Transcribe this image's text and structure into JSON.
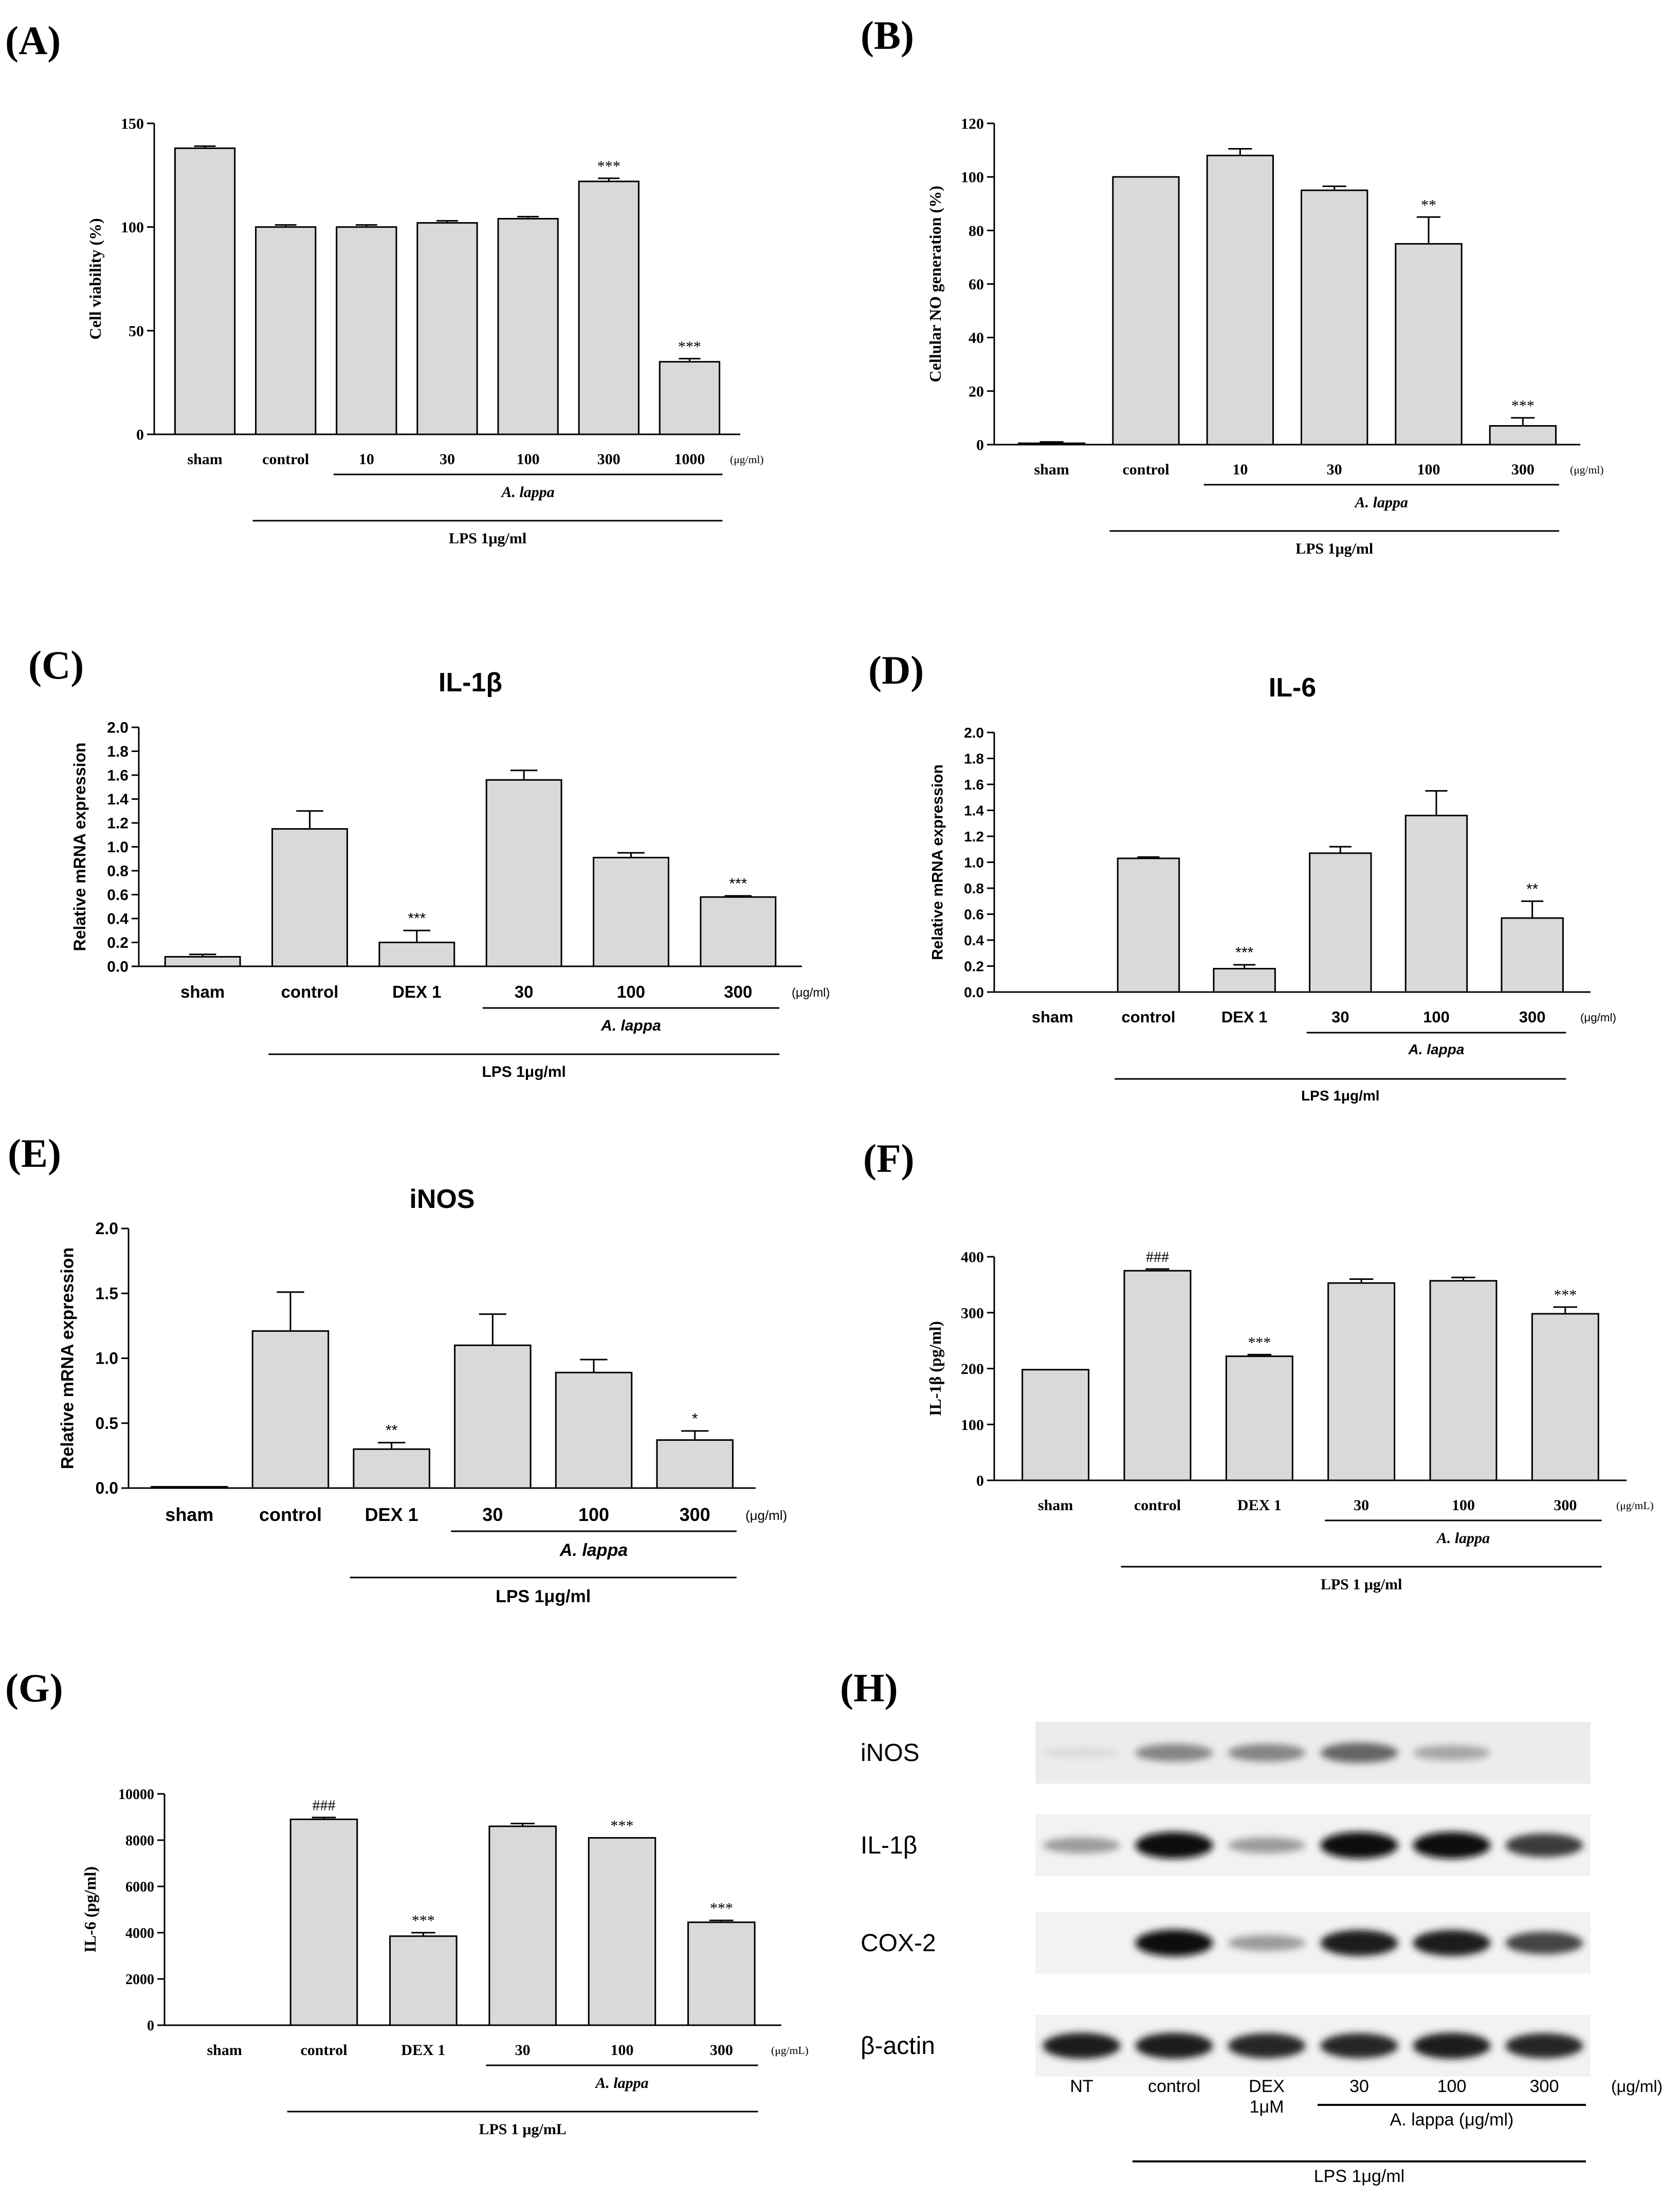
{
  "chart_data": [
    {
      "id": "A",
      "type": "bar",
      "panel_label": "(A)",
      "font": "serif",
      "title": "",
      "ylabel": "Cell viability  (%)",
      "ylim": [
        0,
        150
      ],
      "yticks": [
        0,
        50,
        100,
        150
      ],
      "ytick_labels": [
        "0",
        "50",
        "100",
        "150"
      ],
      "categories": [
        "sham",
        "control",
        "10",
        "30",
        "100",
        "300",
        "1000"
      ],
      "values": [
        138,
        100,
        100,
        102,
        104,
        122,
        35
      ],
      "errors": [
        1,
        1,
        1,
        1,
        1,
        1.5,
        1.5
      ],
      "significance": [
        "",
        "",
        "",
        "",
        "",
        "***",
        "***"
      ],
      "unit_label": "(μg/ml)",
      "groups": [
        {
          "label": "A. lappa",
          "italic": true,
          "from": 2,
          "to": 6,
          "level": 1
        },
        {
          "label": "LPS 1μg/ml",
          "italic": false,
          "from": 1,
          "to": 6,
          "level": 2
        }
      ]
    },
    {
      "id": "B",
      "type": "bar",
      "panel_label": "(B)",
      "font": "serif",
      "title": "",
      "ylabel": "Cellular NO generation (%)",
      "ylim": [
        0,
        120
      ],
      "yticks": [
        0,
        20,
        40,
        60,
        80,
        100,
        120
      ],
      "ytick_labels": [
        "0",
        "20",
        "40",
        "60",
        "80",
        "100",
        "120"
      ],
      "categories": [
        "sham",
        "control",
        "10",
        "30",
        "100",
        "300"
      ],
      "values": [
        0.5,
        100,
        108,
        95,
        75,
        7
      ],
      "errors": [
        0.5,
        0,
        2.5,
        1.5,
        10,
        3
      ],
      "significance": [
        "",
        "",
        "",
        "",
        "**",
        "***"
      ],
      "unit_label": "(μg/ml)",
      "groups": [
        {
          "label": "A. lappa",
          "italic": true,
          "from": 2,
          "to": 5,
          "level": 1
        },
        {
          "label": "LPS 1μg/ml",
          "italic": false,
          "from": 1,
          "to": 5,
          "level": 2
        }
      ]
    },
    {
      "id": "C",
      "type": "bar",
      "panel_label": "(C)",
      "font": "sans",
      "title": "IL-1β",
      "ylabel": "Relative mRNA expression",
      "ylim": [
        0,
        2.0
      ],
      "yticks": [
        0,
        0.2,
        0.4,
        0.6,
        0.8,
        1.0,
        1.2,
        1.4,
        1.6,
        1.8,
        2.0
      ],
      "ytick_labels": [
        "0.0",
        "0.2",
        "0.4",
        "0.6",
        "0.8",
        "1.0",
        "1.2",
        "1.4",
        "1.6",
        "1.8",
        "2.0"
      ],
      "categories": [
        "sham",
        "control",
        "DEX 1",
        "30",
        "100",
        "300"
      ],
      "values": [
        0.08,
        1.15,
        0.2,
        1.56,
        0.91,
        0.58
      ],
      "errors": [
        0.02,
        0.15,
        0.1,
        0.08,
        0.04,
        0.01
      ],
      "significance": [
        "",
        "",
        "***",
        "",
        "",
        "***"
      ],
      "unit_label": "(μg/ml)",
      "groups": [
        {
          "label": "A. lappa",
          "italic": true,
          "from": 3,
          "to": 5,
          "level": 1
        },
        {
          "label": "LPS 1μg/ml",
          "italic": false,
          "from": 1,
          "to": 5,
          "level": 2
        }
      ]
    },
    {
      "id": "D",
      "type": "bar",
      "panel_label": "(D)",
      "font": "sans",
      "title": "IL-6",
      "ylabel": "Relative mRNA expression",
      "ylim": [
        0,
        2.0
      ],
      "yticks": [
        0,
        0.2,
        0.4,
        0.6,
        0.8,
        1.0,
        1.2,
        1.4,
        1.6,
        1.8,
        2.0
      ],
      "ytick_labels": [
        "0.0",
        "0.2",
        "0.4",
        "0.6",
        "0.8",
        "1.0",
        "1.2",
        "1.4",
        "1.6",
        "1.8",
        "2.0"
      ],
      "categories": [
        "sham",
        "control",
        "DEX 1",
        "30",
        "100",
        "300"
      ],
      "values": [
        0,
        1.03,
        0.18,
        1.07,
        1.36,
        0.57
      ],
      "errors": [
        0,
        0.01,
        0.03,
        0.05,
        0.19,
        0.13
      ],
      "significance": [
        "",
        "",
        "***",
        "",
        "",
        "**"
      ],
      "unit_label": "(μg/ml)",
      "groups": [
        {
          "label": "A. lappa",
          "italic": true,
          "from": 3,
          "to": 5,
          "level": 1
        },
        {
          "label": "LPS 1μg/ml",
          "italic": false,
          "from": 1,
          "to": 5,
          "level": 2
        }
      ]
    },
    {
      "id": "E",
      "type": "bar",
      "panel_label": "(E)",
      "font": "sans",
      "title": "iNOS",
      "ylabel": "Relative mRNA expression",
      "ylim": [
        0,
        2.0
      ],
      "yticks": [
        0,
        0.5,
        1.0,
        1.5,
        2.0
      ],
      "ytick_labels": [
        "0.0",
        "0.5",
        "1.0",
        "1.5",
        "2.0"
      ],
      "categories": [
        "sham",
        "control",
        "DEX 1",
        "30",
        "100",
        "300"
      ],
      "values": [
        0.01,
        1.21,
        0.3,
        1.1,
        0.89,
        0.37
      ],
      "errors": [
        0,
        0.3,
        0.05,
        0.24,
        0.1,
        0.07
      ],
      "significance": [
        "",
        "",
        "**",
        "",
        "",
        "*"
      ],
      "unit_label": "(μg/ml)",
      "groups": [
        {
          "label": "A. lappa",
          "italic": true,
          "from": 3,
          "to": 5,
          "level": 1
        },
        {
          "label": "LPS 1μg/ml",
          "italic": false,
          "from": 2,
          "to": 5,
          "level": 2
        }
      ]
    },
    {
      "id": "F",
      "type": "bar",
      "panel_label": "(F)",
      "font": "serif",
      "title": "",
      "ylabel": "IL-1β (pg/ml)",
      "ylim": [
        0,
        400
      ],
      "yticks": [
        0,
        100,
        200,
        300,
        400
      ],
      "ytick_labels": [
        "0",
        "100",
        "200",
        "300",
        "400"
      ],
      "categories": [
        "sham",
        "control",
        "DEX 1",
        "30",
        "100",
        "300"
      ],
      "values": [
        198,
        375,
        222,
        353,
        357,
        298
      ],
      "errors": [
        0,
        3,
        3,
        7,
        6,
        12
      ],
      "significance": [
        "",
        "###",
        "***",
        "",
        "",
        "***"
      ],
      "unit_label": "(μg/mL)",
      "groups": [
        {
          "label": "A. lappa",
          "italic": true,
          "from": 3,
          "to": 5,
          "level": 1
        },
        {
          "label": "LPS 1 μg/ml",
          "italic": false,
          "from": 1,
          "to": 5,
          "level": 2
        }
      ]
    },
    {
      "id": "G",
      "type": "bar",
      "panel_label": "(G)",
      "font": "serif",
      "title": "",
      "ylabel": "IL-6 (pg/ml)",
      "ylim": [
        0,
        10000
      ],
      "yticks": [
        0,
        2000,
        4000,
        6000,
        8000,
        10000
      ],
      "ytick_labels": [
        "0",
        "2000",
        "4000",
        "6000",
        "8000",
        "10000"
      ],
      "categories": [
        "sham",
        "control",
        "DEX 1",
        "30",
        "100",
        "300"
      ],
      "values": [
        0,
        8900,
        3850,
        8600,
        8100,
        4450
      ],
      "errors": [
        0,
        80,
        150,
        120,
        0,
        80
      ],
      "significance": [
        "",
        "###",
        "***",
        "",
        "***",
        "***"
      ],
      "unit_label": "(μg/mL)",
      "groups": [
        {
          "label": "A. lappa",
          "italic": true,
          "from": 3,
          "to": 5,
          "level": 1
        },
        {
          "label": "LPS 1 μg/mL",
          "italic": false,
          "from": 1,
          "to": 5,
          "level": 2
        }
      ]
    }
  ],
  "blot": {
    "panel_label": "(H)",
    "proteins": [
      "iNOS",
      "IL-1β",
      "COX-2",
      "β-actin"
    ],
    "lanes": [
      "NT",
      "control",
      "DEX\n1μM",
      "30",
      "100",
      "300"
    ],
    "unit_label": "(μg/ml)",
    "intensity": [
      [
        0.05,
        0.45,
        0.45,
        0.6,
        0.3,
        0.0
      ],
      [
        0.35,
        1.0,
        0.35,
        1.0,
        1.0,
        0.8
      ],
      [
        0.0,
        1.0,
        0.35,
        0.95,
        0.95,
        0.75
      ],
      [
        0.95,
        0.95,
        0.9,
        0.9,
        0.95,
        0.9
      ]
    ],
    "groups": [
      {
        "label": "A. lappa (μg/ml)",
        "from": 3,
        "to": 5,
        "level": 1
      },
      {
        "label": "LPS 1μg/ml",
        "from": 1,
        "to": 5,
        "level": 2
      }
    ]
  }
}
